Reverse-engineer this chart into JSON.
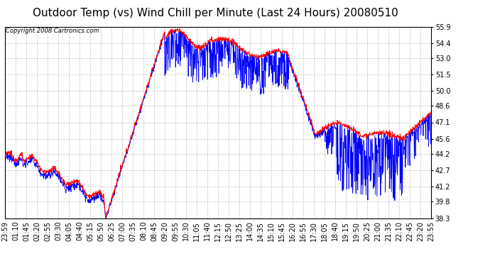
{
  "title": "Outdoor Temp (vs) Wind Chill per Minute (Last 24 Hours) 20080510",
  "copyright": "Copyright 2008 Cartronics.com",
  "ylim": [
    38.3,
    55.9
  ],
  "yticks": [
    38.3,
    39.8,
    41.2,
    42.7,
    44.2,
    45.6,
    47.1,
    48.6,
    50.0,
    51.5,
    53.0,
    54.4,
    55.9
  ],
  "xlabel_times": [
    "23:59",
    "01:10",
    "01:45",
    "02:20",
    "02:55",
    "03:30",
    "04:05",
    "04:40",
    "05:15",
    "05:50",
    "06:25",
    "07:00",
    "07:35",
    "08:10",
    "08:45",
    "09:20",
    "09:55",
    "10:30",
    "11:05",
    "11:40",
    "12:15",
    "12:50",
    "13:25",
    "14:00",
    "14:35",
    "15:10",
    "15:45",
    "16:20",
    "16:55",
    "17:30",
    "18:05",
    "18:40",
    "19:15",
    "19:50",
    "20:25",
    "21:00",
    "21:35",
    "22:10",
    "22:45",
    "23:20",
    "23:55"
  ],
  "background_color": "#ffffff",
  "plot_bg_color": "#ffffff",
  "grid_color": "#c0c0c0",
  "line_color_red": "#ff0000",
  "line_color_blue": "#0000ff",
  "title_fontsize": 11,
  "tick_fontsize": 7,
  "copyright_fontsize": 6
}
